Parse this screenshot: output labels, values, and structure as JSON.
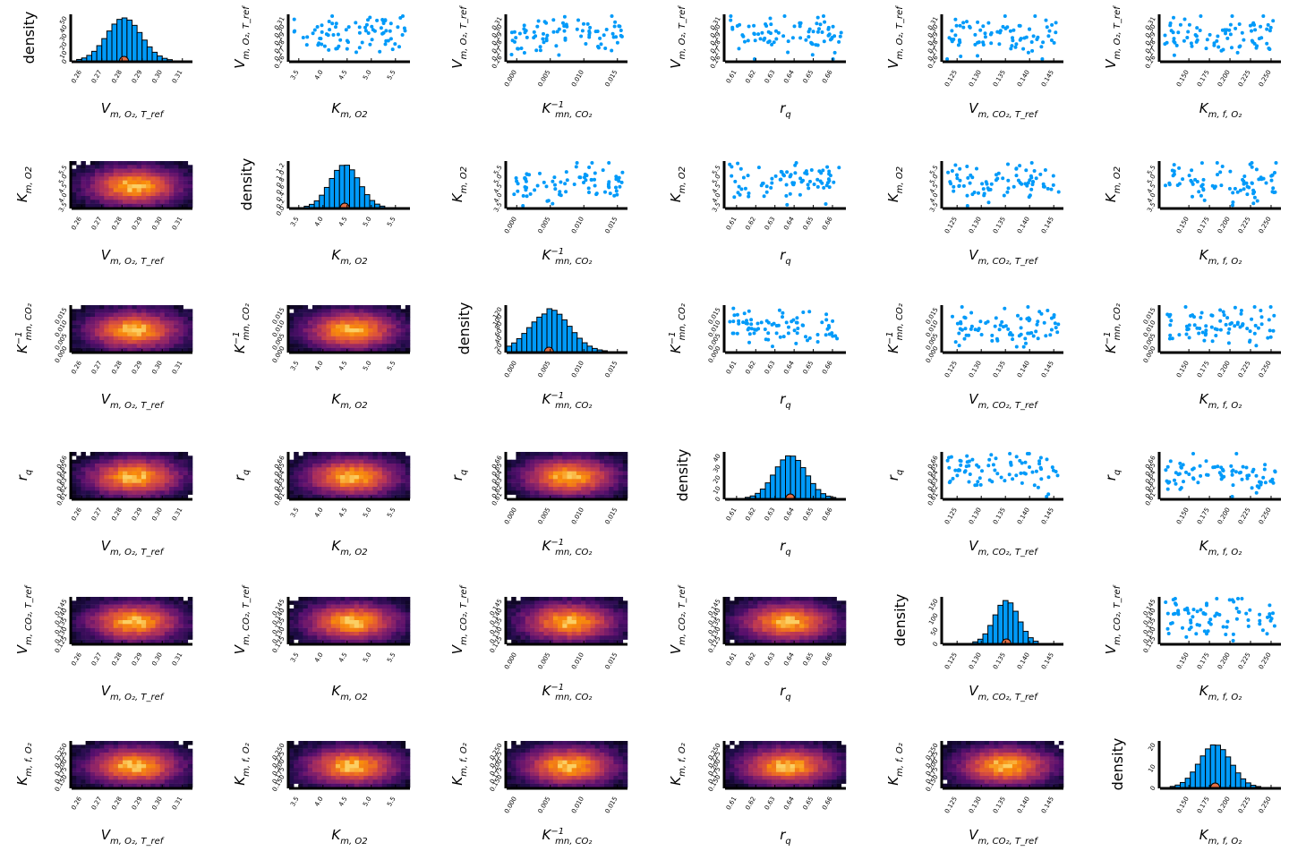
{
  "figure": {
    "kind": "corner-pair-plot",
    "variables": [
      {
        "id": "Vm_O2",
        "label_main": "V",
        "label_sub": "m, O₂, T_ref",
        "ticks": [
          "0.26",
          "0.27",
          "0.28",
          "0.29",
          "0.30",
          "0.31"
        ],
        "range": [
          0.255,
          0.315
        ]
      },
      {
        "id": "Km_O2",
        "label_main": "K",
        "label_sub": "m, O2",
        "ticks": [
          "3.5",
          "4.0",
          "4.5",
          "5.0",
          "5.5"
        ],
        "range": [
          3.3,
          5.8
        ]
      },
      {
        "id": "Kmn_CO2_inv",
        "label_main": "K",
        "label_sub": "mn, CO₂",
        "label_sup": "−1",
        "ticks": [
          "0.000",
          "0.005",
          "0.010",
          "0.015"
        ],
        "range": [
          -0.0015,
          0.0165
        ]
      },
      {
        "id": "rq",
        "label_main": "r",
        "label_sub": "q",
        "ticks": [
          "0.61",
          "0.62",
          "0.63",
          "0.64",
          "0.65",
          "0.66"
        ],
        "range": [
          0.604,
          0.667
        ]
      },
      {
        "id": "Vm_CO2",
        "label_main": "V",
        "label_sub": "m, CO₂, T_ref",
        "ticks": [
          "0.125",
          "0.130",
          "0.135",
          "0.140",
          "0.145"
        ],
        "range": [
          0.122,
          0.147
        ]
      },
      {
        "id": "Kmf_O2",
        "label_main": "K",
        "label_sub": "m, f, O₂",
        "ticks": [
          "0.150",
          "0.175",
          "0.200",
          "0.225",
          "0.250"
        ],
        "range": [
          0.115,
          0.262
        ]
      }
    ],
    "density_label": "density"
  },
  "chart_data": {
    "type": "pair-plot",
    "diagonal": {
      "type": "histogram",
      "ylabel": "density",
      "y_ticks": [
        [
          "0",
          "10",
          "20",
          "30",
          "40",
          "50"
        ],
        [
          "0.0",
          "0.2",
          "0.4",
          "0.6",
          "0.8",
          "1.0",
          "1.2"
        ],
        [
          "0",
          "20",
          "40",
          "60",
          "80",
          "100",
          "120"
        ],
        [
          "0",
          "10",
          "20",
          "30",
          "40"
        ],
        [
          "0",
          "50",
          "100",
          "150"
        ],
        [
          "0",
          "10",
          "20"
        ]
      ],
      "y_max": [
        52,
        1.28,
        125,
        48,
        165,
        22
      ],
      "centers": [
        0.281,
        4.45,
        0.0048,
        0.638,
        0.1352,
        0.182
      ],
      "spreads": [
        0.0085,
        0.3,
        0.003,
        0.0082,
        0.0025,
        0.019
      ],
      "marker_color": "#e26f46"
    },
    "upper": {
      "type": "scatter",
      "color": "#009af9",
      "n_points": 80
    },
    "lower": {
      "type": "heatmap",
      "colormap": "inferno"
    },
    "colors": {
      "hist_fill": "#009af9",
      "scatter": "#009af9",
      "axis": "#000000",
      "marker": "#e26f46"
    }
  }
}
